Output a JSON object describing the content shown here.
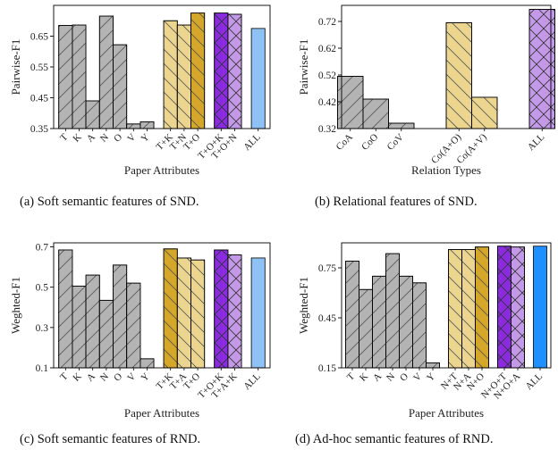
{
  "captions": [
    "(a)  Soft semantic features of SND.",
    "(b)  Relational features of SND.",
    "(c)  Soft semantic features of RND.",
    "(d)  Ad-hoc semantic features of RND."
  ],
  "colors": {
    "gray": "#b4b4b4",
    "tan": "#ecd58f",
    "gold": "#d4a62a",
    "purple": "#8a2be2",
    "lavender": "#c49ae8",
    "lightblue": "#8ec1f4",
    "blue": "#1e90ff"
  },
  "chart_data": [
    {
      "type": "bar",
      "ylabel": "Pairwise-F1",
      "xlabel": "Paper Attributes",
      "ylim": [
        0.35,
        0.75
      ],
      "yticks": [
        0.35,
        0.45,
        0.55,
        0.65
      ],
      "ytick_labels": [
        "0.35",
        "0.45",
        "0.55",
        "0.65"
      ],
      "categories": [
        "T",
        "K",
        "A",
        "N",
        "O",
        "V",
        "Y",
        "T+K",
        "T+N",
        "T+O",
        "T+O+K",
        "T+O+N",
        "ALL"
      ],
      "values": [
        0.685,
        0.686,
        0.44,
        0.715,
        0.622,
        0.365,
        0.372,
        0.7,
        0.686,
        0.725,
        0.725,
        0.721,
        0.675
      ],
      "colors": [
        "gray",
        "gray",
        "gray",
        "gray",
        "gray",
        "gray",
        "gray",
        "tan",
        "tan",
        "gold",
        "purple",
        "lavender",
        "lightblue"
      ],
      "hatches": [
        "/",
        "/",
        "/",
        "/",
        "/",
        "/",
        "/",
        "\\",
        "\\",
        "\\",
        "x",
        "x",
        ""
      ]
    },
    {
      "type": "bar",
      "ylabel": "Pairwise-F1",
      "xlabel": "Relation Types",
      "ylim": [
        0.32,
        0.78
      ],
      "yticks": [
        0.32,
        0.42,
        0.52,
        0.62,
        0.72
      ],
      "ytick_labels": [
        "0.32",
        "0.42",
        "0.52",
        "0.62",
        "0.72"
      ],
      "categories": [
        "CoA",
        "CoO",
        "CoV",
        "Co(A+O)",
        "Co(A+V)",
        "ALL"
      ],
      "values": [
        0.515,
        0.43,
        0.34,
        0.715,
        0.437,
        0.765
      ],
      "colors": [
        "gray",
        "gray",
        "gray",
        "tan",
        "tan",
        "lavender"
      ],
      "hatches": [
        "/",
        "/",
        "/",
        "\\",
        "\\",
        "x"
      ]
    },
    {
      "type": "bar",
      "ylabel": "Weghted-F1",
      "xlabel": "Paper Attributes",
      "ylim": [
        0.1,
        0.72
      ],
      "yticks": [
        0.1,
        0.3,
        0.5,
        0.7
      ],
      "ytick_labels": [
        "0.1",
        "0.3",
        "0.5",
        "0.7"
      ],
      "categories": [
        "T",
        "K",
        "A",
        "N",
        "O",
        "V",
        "Y",
        "T+K",
        "T+A",
        "T+O",
        "T+O+K",
        "T+A+K",
        "ALL"
      ],
      "values": [
        0.685,
        0.505,
        0.56,
        0.435,
        0.61,
        0.52,
        0.145,
        0.69,
        0.645,
        0.635,
        0.685,
        0.66,
        0.645
      ],
      "colors": [
        "gray",
        "gray",
        "gray",
        "gray",
        "gray",
        "gray",
        "gray",
        "gold",
        "tan",
        "tan",
        "purple",
        "lavender",
        "lightblue"
      ],
      "hatches": [
        "/",
        "/",
        "/",
        "/",
        "/",
        "/",
        "/",
        "\\",
        "\\",
        "\\",
        "x",
        "x",
        ""
      ]
    },
    {
      "type": "bar",
      "ylabel": "Weghted-F1",
      "xlabel": "Paper Attributes",
      "ylim": [
        0.15,
        0.9
      ],
      "yticks": [
        0.15,
        0.45,
        0.75
      ],
      "ytick_labels": [
        "0.15",
        "0.45",
        "0.75"
      ],
      "categories": [
        "T",
        "K",
        "A",
        "N",
        "O",
        "V",
        "Y",
        "N+T",
        "N+A",
        "N+O",
        "N+O+T",
        "N+O+A",
        "ALL"
      ],
      "values": [
        0.79,
        0.62,
        0.7,
        0.835,
        0.7,
        0.66,
        0.18,
        0.86,
        0.86,
        0.875,
        0.88,
        0.875,
        0.88
      ],
      "colors": [
        "gray",
        "gray",
        "gray",
        "gray",
        "gray",
        "gray",
        "gray",
        "tan",
        "tan",
        "gold",
        "purple",
        "lavender",
        "blue"
      ],
      "hatches": [
        "/",
        "/",
        "/",
        "/",
        "/",
        "/",
        "/",
        "\\",
        "\\",
        "\\",
        "x",
        "x",
        ""
      ]
    }
  ]
}
